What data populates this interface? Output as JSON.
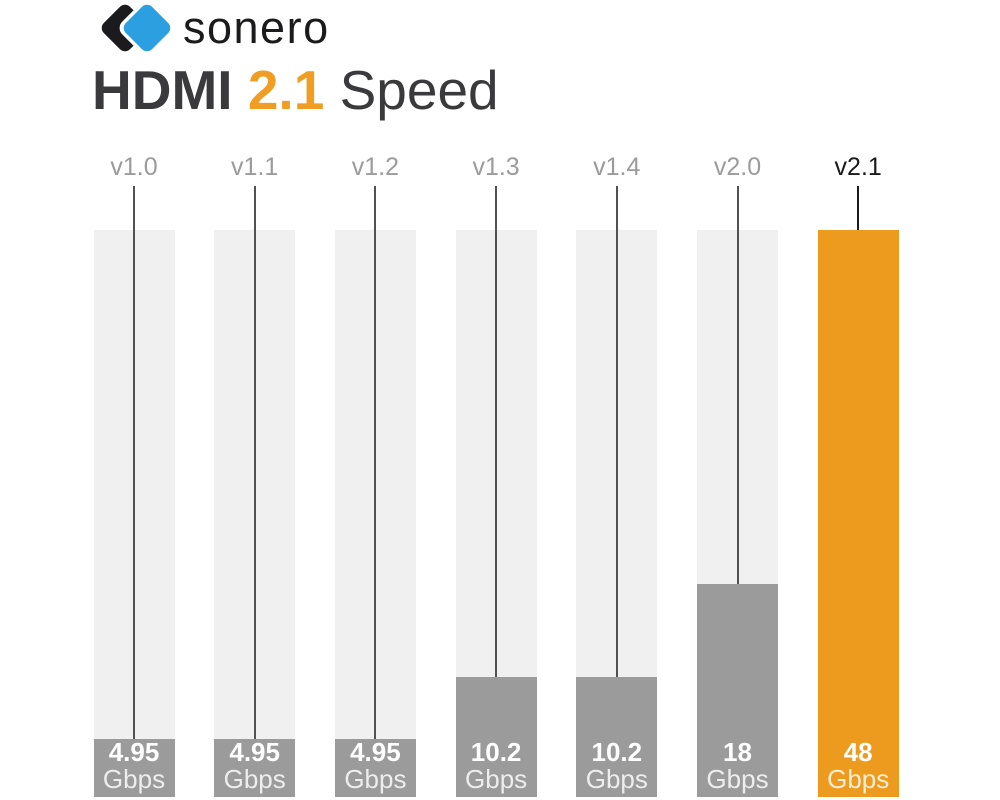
{
  "brand": {
    "name": "sonero",
    "colors": {
      "icon_black": "#1b1b1d",
      "icon_blue": "#2b9fe0",
      "text": "#1b1b1d"
    }
  },
  "title": {
    "part_bold": "HDMI",
    "part_accent": "2.1",
    "part_regular": "Speed",
    "colors": {
      "text": "#3a3a3c",
      "accent": "#f09d24"
    }
  },
  "chart_data": {
    "type": "bar",
    "title": "HDMI 2.1 Speed",
    "unit": "Gbps",
    "categories": [
      "v1.0",
      "v1.1",
      "v1.2",
      "v1.3",
      "v1.4",
      "v2.0",
      "v2.1"
    ],
    "values": [
      4.95,
      4.95,
      4.95,
      10.2,
      10.2,
      18,
      48
    ],
    "value_labels": [
      "4.95",
      "4.95",
      "4.95",
      "10.2",
      "10.2",
      "18",
      "48"
    ],
    "ylim": [
      0,
      48
    ],
    "highlight_index": 6,
    "grid": false,
    "legend_position": "none",
    "colors": {
      "bar": "#9c9b9b",
      "highlight_bar": "#ed9b1f",
      "track": "#eff0ef",
      "category_label": "#9b9b9b",
      "highlight_category_label": "#1a1a1a",
      "connector_line": "#515154",
      "highlight_connector_line": "#1b1b1b",
      "value_text": "#ffffff"
    }
  }
}
